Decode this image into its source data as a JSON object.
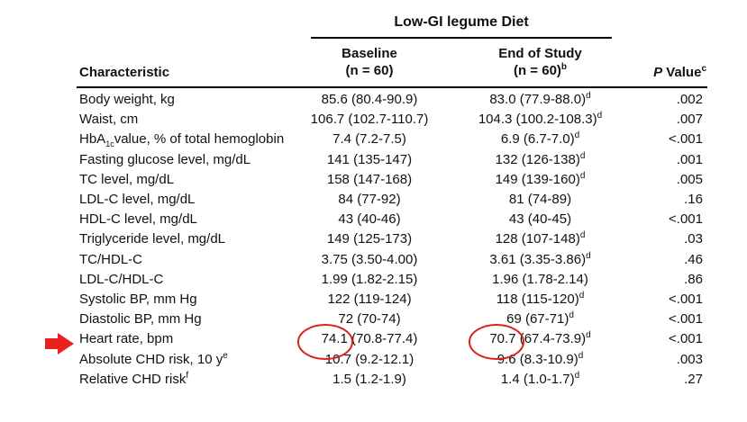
{
  "table": {
    "group_header": "Low-GI legume Diet",
    "columns": {
      "characteristic": "Characteristic",
      "baseline_title": "Baseline",
      "baseline_n": "(n = 60)",
      "end_title": "End of Study",
      "end_n": "(n = 60)",
      "end_n_sup": "b",
      "p_italic": "P",
      "p_label": " Value",
      "p_sup": "c"
    },
    "rows": [
      {
        "char": "Body weight, kg",
        "baseline": "85.6 (80.4-90.9)",
        "end": "83.0 (77.9-88.0)",
        "end_sup": "d",
        "p": ".002"
      },
      {
        "char": "Waist, cm",
        "baseline": "106.7 (102.7-110.7)",
        "end": "104.3 (100.2-108.3)",
        "end_sup": "d",
        "p": ".007"
      },
      {
        "char_pre": "HbA",
        "char_sub": "1c",
        "char": "value, % of total hemoglobin",
        "baseline": "7.4 (7.2-7.5)",
        "end": "6.9 (6.7-7.0)",
        "end_sup": "d",
        "p": "<.001"
      },
      {
        "char": "Fasting glucose level, mg/dL",
        "baseline": "141 (135-147)",
        "end": "132 (126-138)",
        "end_sup": "d",
        "p": ".001"
      },
      {
        "char": "TC level, mg/dL",
        "baseline": "158 (147-168)",
        "end": "149 (139-160)",
        "end_sup": "d",
        "p": ".005"
      },
      {
        "char": "LDL-C level, mg/dL",
        "baseline": "84 (77-92)",
        "end": "81 (74-89)",
        "end_sup": "",
        "p": ".16"
      },
      {
        "char": "HDL-C level, mg/dL",
        "baseline": "43 (40-46)",
        "end": "43 (40-45)",
        "end_sup": "",
        "p": "<.001"
      },
      {
        "char": "Triglyceride level, mg/dL",
        "baseline": "149 (125-173)",
        "end": "128 (107-148)",
        "end_sup": "d",
        "p": ".03"
      },
      {
        "char": "TC/HDL-C",
        "baseline": "3.75 (3.50-4.00)",
        "end": "3.61 (3.35-3.86)",
        "end_sup": "d",
        "p": ".46"
      },
      {
        "char": "LDL-C/HDL-C",
        "baseline": "1.99 (1.82-2.15)",
        "end": "1.96 (1.78-2.14)",
        "end_sup": "",
        "p": ".86"
      },
      {
        "char": "Systolic BP, mm Hg",
        "baseline": "122 (119-124)",
        "end": "118 (115-120)",
        "end_sup": "d",
        "p": "<.001"
      },
      {
        "char": "Diastolic BP, mm Hg",
        "baseline": "72 (70-74)",
        "end": "69 (67-71)",
        "end_sup": "d",
        "p": "<.001"
      },
      {
        "char": "Heart rate, bpm",
        "baseline": "74.1 (70.8-77.4)",
        "end": "70.7 (67.4-73.9)",
        "end_sup": "d",
        "p": "<.001"
      },
      {
        "char": "Absolute CHD risk, 10 y",
        "char_sup": "e",
        "baseline": "10.7 (9.2-12.1)",
        "end": "9.6 (8.3-10.9)",
        "end_sup": "d",
        "p": ".003"
      },
      {
        "char": "Relative CHD risk",
        "char_sup": "f",
        "baseline": "1.5 (1.2-1.9)",
        "end": "1.4 (1.0-1.7)",
        "end_sup": "d",
        "p": ".27"
      }
    ]
  },
  "annotations": {
    "arrow_color": "#e8201e",
    "circle_color": "#d9221c"
  }
}
